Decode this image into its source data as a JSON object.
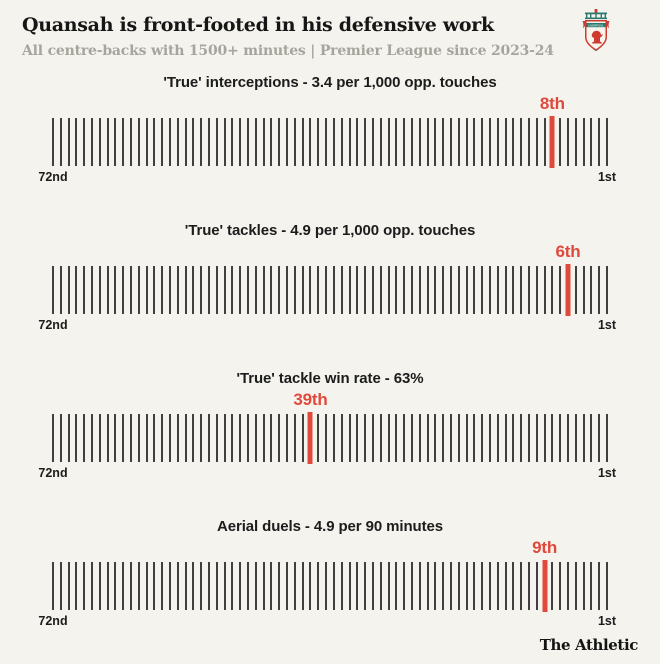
{
  "header": {
    "title": "Quansah is front-footed in his defensive work",
    "subtitle": "All centre-backs with 1500+ minutes | Premier League since 2023-24",
    "crest_icon": "liverpool-crest"
  },
  "footer": {
    "brand": "The Athletic"
  },
  "colors": {
    "background": "#f4f3ee",
    "accent_red": "#e04a3c",
    "tick_gray": "#404040",
    "title_text": "#161616",
    "subtitle_text": "#a6a59d"
  },
  "chart_data": [
    {
      "type": "strip-rank",
      "title": "'True' interceptions - 3.4 per 1,000 opp. touches",
      "metric_value": 3.4,
      "metric_unit": "per 1,000 opp. touches",
      "rank": 8,
      "rank_label": "8th",
      "total_players": 72,
      "axis_left_label": "72nd",
      "axis_right_label": "1st"
    },
    {
      "type": "strip-rank",
      "title": "'True' tackles - 4.9 per 1,000 opp. touches",
      "metric_value": 4.9,
      "metric_unit": "per 1,000 opp. touches",
      "rank": 6,
      "rank_label": "6th",
      "total_players": 72,
      "axis_left_label": "72nd",
      "axis_right_label": "1st"
    },
    {
      "type": "strip-rank",
      "title": "'True' tackle win rate - 63%",
      "metric_value": 63,
      "metric_unit": "%",
      "rank": 39,
      "rank_label": "39th",
      "total_players": 72,
      "axis_left_label": "72nd",
      "axis_right_label": "1st"
    },
    {
      "type": "strip-rank",
      "title": "Aerial duels - 4.9 per 90 minutes",
      "metric_value": 4.9,
      "metric_unit": "per 90 minutes",
      "rank": 9,
      "rank_label": "9th",
      "total_players": 72,
      "axis_left_label": "72nd",
      "axis_right_label": "1st"
    }
  ]
}
